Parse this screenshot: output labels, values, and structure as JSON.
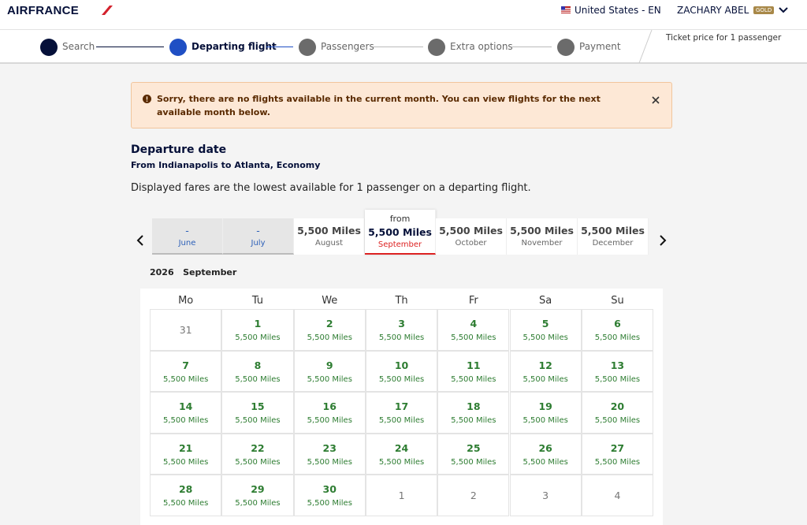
{
  "header": {
    "logo": "AIRFRANCE",
    "locale": "United States - EN",
    "user": "ZACHARY ABEL",
    "tier": "GOLD"
  },
  "steps": [
    "Search",
    "Departing flight",
    "Passengers",
    "Extra options",
    "Payment"
  ],
  "ticket_note": "Ticket price for 1 passenger",
  "alert": "Sorry, there are no flights available in the current month. You can view flights for the next available month below.",
  "heading": "Departure date",
  "route": "From Indianapolis to Atlanta, Economy",
  "fares_note": "Displayed fares are the lowest available for 1 passenger on a departing flight.",
  "months": [
    {
      "price": "-",
      "month": "June"
    },
    {
      "price": "-",
      "month": "July"
    },
    {
      "price": "5,500 Miles",
      "month": "August"
    },
    {
      "prefix": "from",
      "price": "5,500 Miles",
      "month": "September"
    },
    {
      "price": "5,500 Miles",
      "month": "October"
    },
    {
      "price": "5,500 Miles",
      "month": "November"
    },
    {
      "price": "5,500 Miles",
      "month": "December"
    }
  ],
  "calendar": {
    "year": 2026,
    "month": "September",
    "weekdays": [
      "Mo",
      "Tu",
      "We",
      "Th",
      "Fr",
      "Sa",
      "Su"
    ],
    "days": [
      {
        "day": 31
      },
      {
        "day": 1,
        "price": "5,500 Miles"
      },
      {
        "day": 2,
        "price": "5,500 Miles"
      },
      {
        "day": 3,
        "price": "5,500 Miles"
      },
      {
        "day": 4,
        "price": "5,500 Miles"
      },
      {
        "day": 5,
        "price": "5,500 Miles"
      },
      {
        "day": 6,
        "price": "5,500 Miles"
      },
      {
        "day": 7,
        "price": "5,500 Miles"
      },
      {
        "day": 8,
        "price": "5,500 Miles"
      },
      {
        "day": 9,
        "price": "5,500 Miles"
      },
      {
        "day": 10,
        "price": "5,500 Miles"
      },
      {
        "day": 11,
        "price": "5,500 Miles"
      },
      {
        "day": 12,
        "price": "5,500 Miles"
      },
      {
        "day": 13,
        "price": "5,500 Miles"
      },
      {
        "day": 14,
        "price": "5,500 Miles"
      },
      {
        "day": 15,
        "price": "5,500 Miles"
      },
      {
        "day": 16,
        "price": "5,500 Miles"
      },
      {
        "day": 17,
        "price": "5,500 Miles"
      },
      {
        "day": 18,
        "price": "5,500 Miles"
      },
      {
        "day": 19,
        "price": "5,500 Miles"
      },
      {
        "day": 20,
        "price": "5,500 Miles"
      },
      {
        "day": 21,
        "price": "5,500 Miles"
      },
      {
        "day": 22,
        "price": "5,500 Miles"
      },
      {
        "day": 23,
        "price": "5,500 Miles"
      },
      {
        "day": 24,
        "price": "5,500 Miles"
      },
      {
        "day": 25,
        "price": "5,500 Miles"
      },
      {
        "day": 26,
        "price": "5,500 Miles"
      },
      {
        "day": 27,
        "price": "5,500 Miles"
      },
      {
        "day": 28,
        "price": "5,500 Miles"
      },
      {
        "day": 29,
        "price": "5,500 Miles"
      },
      {
        "day": 30,
        "price": "5,500 Miles"
      },
      {
        "day": 1
      },
      {
        "day": 2
      },
      {
        "day": 3
      },
      {
        "day": 4
      }
    ]
  }
}
